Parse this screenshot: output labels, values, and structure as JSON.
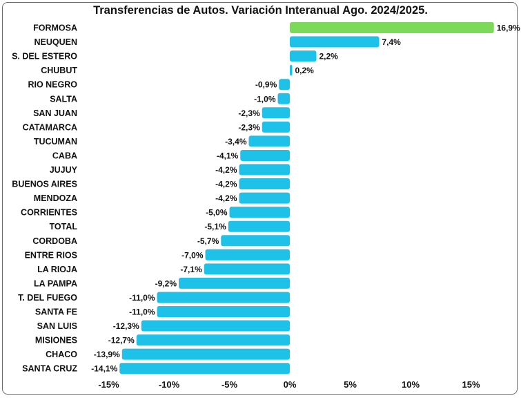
{
  "chart_data": {
    "type": "bar",
    "orientation": "horizontal",
    "title": "Transferencias de Autos. Variación Interanual Ago. 2024/2025.",
    "categories": [
      "FORMOSA",
      "NEUQUEN",
      "S. DEL ESTERO",
      "CHUBUT",
      "RIO NEGRO",
      "SALTA",
      "SAN JUAN",
      "CATAMARCA",
      "TUCUMAN",
      "CABA",
      "JUJUY",
      "BUENOS AIRES",
      "MENDOZA",
      "CORRIENTES",
      "TOTAL",
      "CORDOBA",
      "ENTRE RIOS",
      "LA RIOJA",
      "LA PAMPA",
      "T. DEL FUEGO",
      "SANTA FE",
      "SAN LUIS",
      "MISIONES",
      "CHACO",
      "SANTA CRUZ"
    ],
    "values": [
      16.9,
      7.4,
      2.2,
      0.2,
      -0.9,
      -1.0,
      -2.3,
      -2.3,
      -3.4,
      -4.1,
      -4.2,
      -4.2,
      -4.2,
      -5.0,
      -5.1,
      -5.7,
      -7.0,
      -7.1,
      -9.2,
      -11.0,
      -11.0,
      -12.3,
      -12.7,
      -13.9,
      -14.1
    ],
    "value_labels": [
      "16,9%",
      "7,4%",
      "2,2%",
      "0,2%",
      "-0,9%",
      "-1,0%",
      "-2,3%",
      "-2,3%",
      "-3,4%",
      "-4,1%",
      "-4,2%",
      "-4,2%",
      "-4,2%",
      "-5,0%",
      "-5,1%",
      "-5,7%",
      "-7,0%",
      "-7,1%",
      "-9,2%",
      "-11,0%",
      "-11,0%",
      "-12,3%",
      "-12,7%",
      "-13,9%",
      "-14,1%"
    ],
    "xlim": [
      -15,
      17
    ],
    "xticks": [
      -15,
      -10,
      -5,
      0,
      5,
      10,
      15
    ],
    "xtick_labels": [
      "-15%",
      "-10%",
      "-5%",
      "0%",
      "5%",
      "10%",
      "15%"
    ],
    "grid": false,
    "legend": "none",
    "colors": {
      "default": "#1ec2e8",
      "highlight": "#7dd95a",
      "highlight_category": "FORMOSA"
    }
  }
}
